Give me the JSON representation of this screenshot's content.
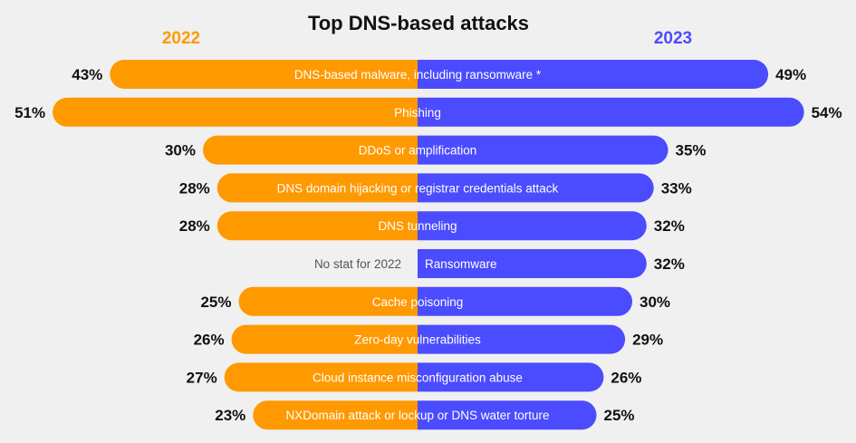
{
  "chart_data": {
    "type": "bar",
    "title": "Top DNS-based attacks",
    "orientation": "horizontal-diverging",
    "series": [
      {
        "name": "2022",
        "color": "#FF9900",
        "values": [
          43,
          51,
          30,
          28,
          28,
          null,
          25,
          26,
          27,
          23
        ]
      },
      {
        "name": "2023",
        "color": "#4B4BFF",
        "values": [
          49,
          54,
          35,
          33,
          32,
          32,
          30,
          29,
          26,
          25
        ]
      }
    ],
    "categories": [
      "DNS-based malware, including ransomware *",
      "Phishing",
      "DDoS or amplification",
      "DNS domain hijacking or registrar credentials attack",
      "DNS tunneling",
      "Ransomware",
      "Cache poisoning",
      "Zero-day vulnerabilities",
      "Cloud instance misconfiguration abuse",
      "NXDomain attack or lockup or DNS water torture"
    ],
    "missing_label": "No stat for 2022",
    "value_suffix": "%"
  }
}
